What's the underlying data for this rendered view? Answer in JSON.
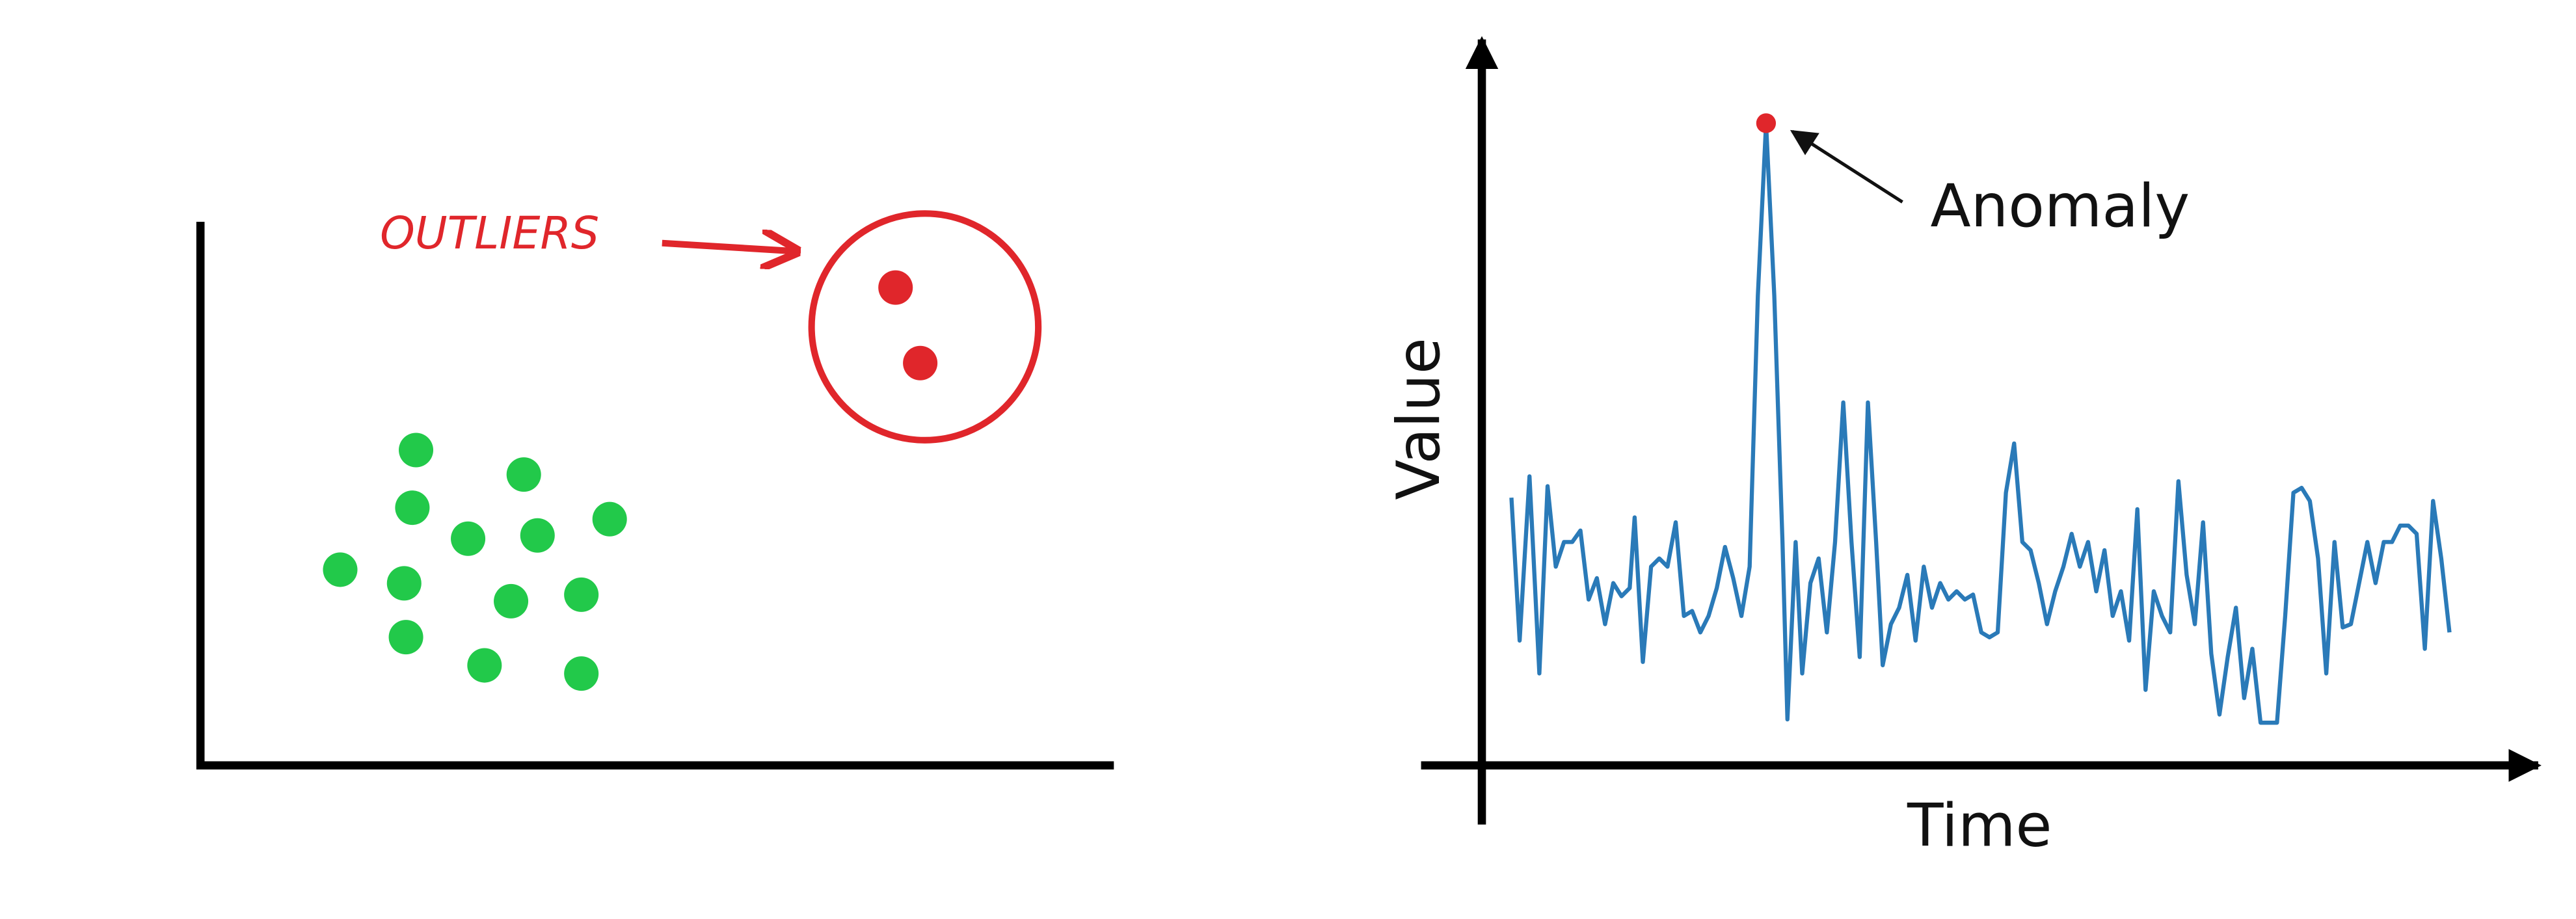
{
  "chart_data": [
    {
      "type": "scatter",
      "series": [
        {
          "color": "#22c94a",
          "x": [
            23.6,
            35.4,
            23.2,
            44.8,
            29.3,
            36.9,
            15.3,
            22.3,
            34.0,
            41.7,
            22.5,
            31.1,
            41.7
          ],
          "y": [
            58.0,
            53.5,
            47.4,
            45.3,
            41.7,
            42.3,
            36.0,
            33.5,
            30.2,
            31.4,
            23.6,
            18.4,
            16.9
          ]
        },
        {
          "name": "OUTLIERS",
          "color": "#e0262b",
          "x": [
            76.1,
            78.8
          ],
          "y": [
            87.9,
            74.0
          ]
        }
      ],
      "xlim": [
        0,
        100
      ],
      "ylim": [
        0,
        100
      ]
    },
    {
      "type": "line",
      "annotation": "Anomaly",
      "xlabel": "Time",
      "ylabel": "Value",
      "color": "#2a7ab8",
      "highlight_color": "#e0262b",
      "x": [
        18,
        23,
        29,
        35,
        40,
        45,
        50,
        55,
        60,
        65,
        70,
        75,
        80,
        85,
        90,
        93,
        98,
        103,
        108,
        113,
        118,
        123,
        128,
        133,
        138,
        143,
        148,
        153,
        158,
        163,
        168,
        173,
        178,
        183,
        186,
        191,
        195,
        200,
        205,
        210,
        215,
        220,
        225,
        230,
        235,
        240,
        244,
        249,
        254,
        259,
        264,
        269,
        274,
        279,
        284,
        289,
        294,
        299,
        304,
        309,
        314,
        319,
        324,
        329,
        334,
        339,
        344,
        349,
        354,
        359,
        364,
        369,
        374,
        379,
        384,
        389,
        394,
        399,
        404,
        409,
        414,
        419,
        424,
        429,
        434,
        439,
        444,
        449,
        454,
        459,
        464,
        469,
        474,
        479,
        484,
        489,
        494,
        499,
        504,
        509,
        514,
        519,
        524,
        529,
        534,
        539,
        544,
        549,
        554,
        559,
        564,
        569,
        574,
        579,
        584,
        589
      ],
      "values": [
        163,
        76,
        176,
        56,
        170,
        121,
        136,
        136,
        143,
        101,
        114,
        86,
        111,
        103,
        108,
        151,
        63,
        121,
        126,
        121,
        148,
        91,
        94,
        81,
        91,
        108,
        133,
        114,
        91,
        121,
        286,
        391,
        286,
        136,
        28,
        136,
        56,
        111,
        126,
        81,
        136,
        221,
        136,
        66,
        221,
        136,
        61,
        86,
        96,
        116,
        76,
        121,
        96,
        111,
        101,
        106,
        101,
        104,
        81,
        78,
        81,
        166,
        196,
        136,
        131,
        111,
        86,
        106,
        121,
        141,
        121,
        136,
        106,
        131,
        91,
        106,
        76,
        156,
        46,
        106,
        91,
        81,
        173,
        116,
        86,
        148,
        68,
        31,
        66,
        96,
        41,
        71,
        26,
        26,
        26,
        91,
        166,
        169,
        161,
        126,
        56,
        136,
        84,
        86,
        111,
        136,
        111,
        136,
        136,
        146,
        146,
        141,
        71,
        161,
        126,
        81
      ],
      "xlim": [
        0,
        640
      ],
      "ylim": [
        0,
        444
      ]
    }
  ]
}
